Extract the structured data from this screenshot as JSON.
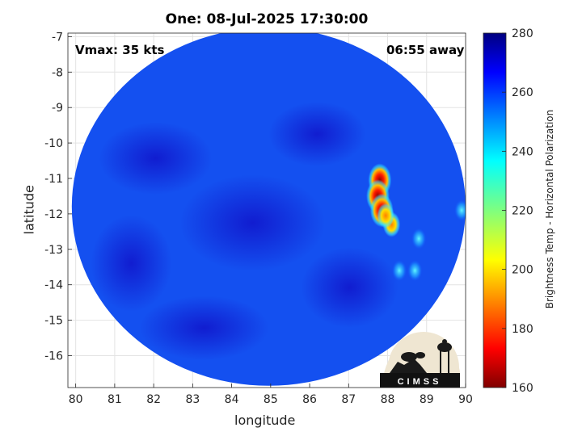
{
  "chart_data": {
    "type": "heatmap",
    "title": "One: 08-Jul-2025 17:30:00",
    "xlabel": "longitude",
    "ylabel": "latitude",
    "xlim": [
      79.8,
      90
    ],
    "ylim": [
      -16.9,
      -6.9
    ],
    "x_ticks": [
      "80",
      "81",
      "82",
      "83",
      "84",
      "85",
      "86",
      "87",
      "88",
      "89",
      "90"
    ],
    "y_ticks": [
      "-7",
      "-8",
      "-9",
      "-10",
      "-11",
      "-12",
      "-13",
      "-14",
      "-15",
      "-16"
    ],
    "grid": true,
    "annotations": {
      "vmax": "Vmax: 35 kts",
      "time_away": "06:55 away"
    },
    "swath": {
      "center_lon": 84.95,
      "center_lat": -11.8,
      "radius_lon": 5.05,
      "radius_lat": 5.05
    },
    "background_value": 265,
    "features": [
      {
        "lon": 87.8,
        "lat": -11.05,
        "value": 170
      },
      {
        "lon": 87.75,
        "lat": -11.5,
        "value": 172
      },
      {
        "lon": 87.85,
        "lat": -11.9,
        "value": 180
      },
      {
        "lon": 88.1,
        "lat": -12.3,
        "value": 190
      },
      {
        "lon": 87.95,
        "lat": -12.05,
        "value": 200
      },
      {
        "lon": 88.8,
        "lat": -12.7,
        "value": 235
      },
      {
        "lon": 88.3,
        "lat": -13.6,
        "value": 240
      },
      {
        "lon": 88.7,
        "lat": -13.6,
        "value": 242
      },
      {
        "lon": 89.9,
        "lat": -11.9,
        "value": 245
      }
    ],
    "colorbar": {
      "label": "Brightness Temp - Horizontal Polarization",
      "range": [
        160,
        280
      ],
      "ticks": [
        "280",
        "260",
        "240",
        "220",
        "200",
        "180",
        "160"
      ],
      "colormap": "jet"
    }
  },
  "logo": {
    "text": "CIMSS"
  }
}
